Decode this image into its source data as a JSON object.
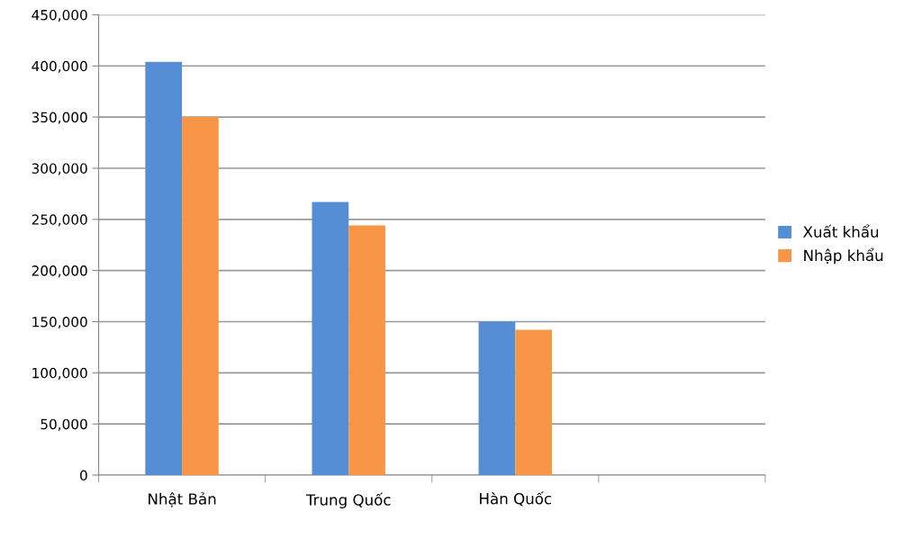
{
  "chart_data": {
    "type": "bar",
    "categories": [
      "Nhật Bản",
      "Trung Quốc",
      "Hàn Quốc",
      null
    ],
    "series": [
      {
        "name": "Xuất khẩu",
        "color": "#558ed5",
        "values": [
          404000,
          267000,
          150000,
          null
        ]
      },
      {
        "name": "Nhập khẩu",
        "color": "#f79646",
        "values": [
          350000,
          244000,
          142000,
          null
        ]
      }
    ],
    "ylim": [
      0,
      450000
    ],
    "yticks": [
      {
        "value": 0,
        "label": "0"
      },
      {
        "value": 50000,
        "label": "50,000"
      },
      {
        "value": 100000,
        "label": "100,000"
      },
      {
        "value": 150000,
        "label": "150,000"
      },
      {
        "value": 200000,
        "label": "200,000"
      },
      {
        "value": 250000,
        "label": "250,000"
      },
      {
        "value": 300000,
        "label": "300,000"
      },
      {
        "value": 350000,
        "label": "350,000"
      },
      {
        "value": 400000,
        "label": "400,000"
      },
      {
        "value": 450000,
        "label": "450,000"
      }
    ],
    "grid": "y",
    "legend": "right"
  }
}
